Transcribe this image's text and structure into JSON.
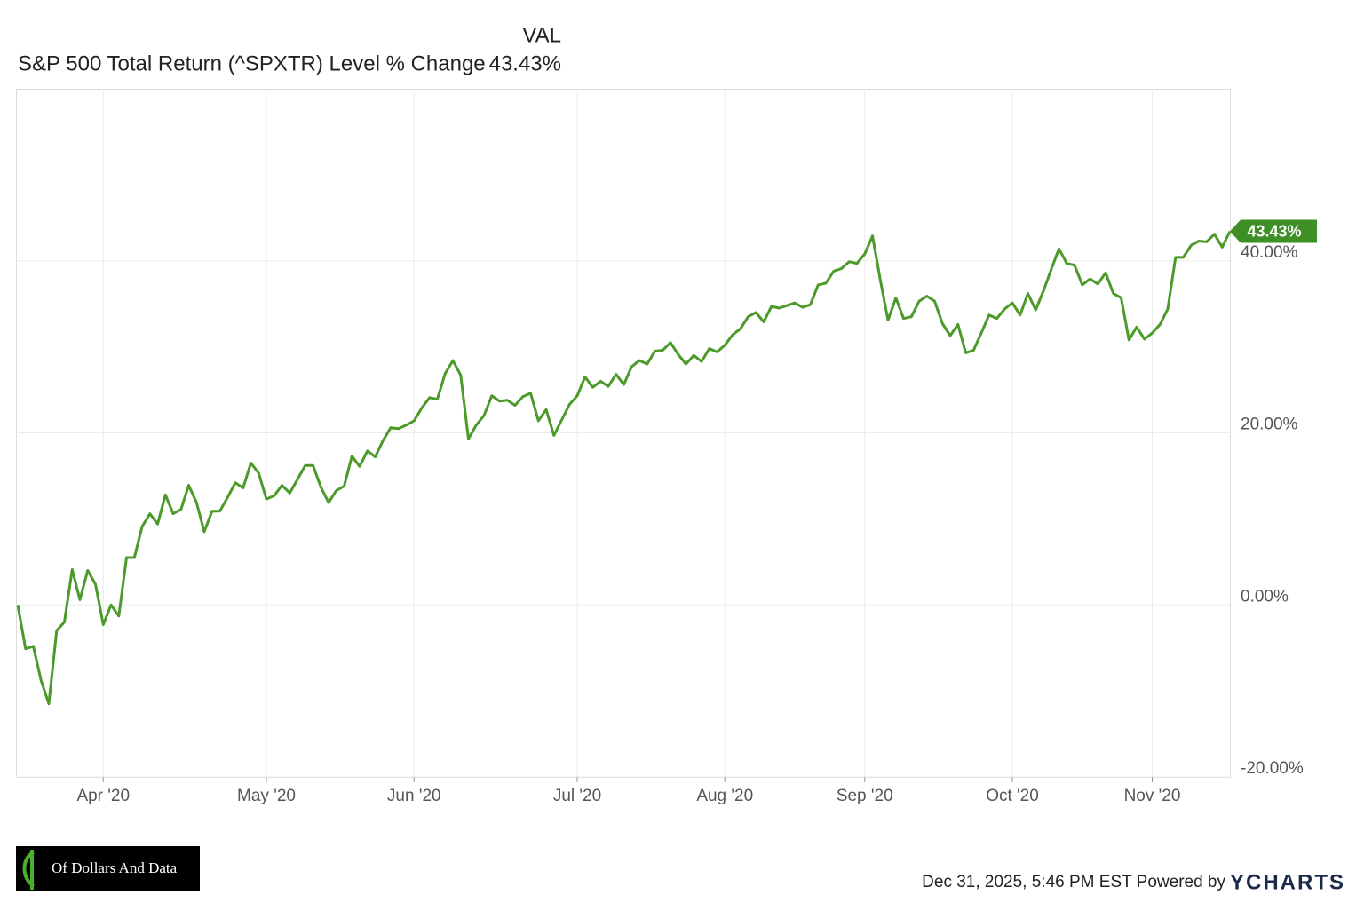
{
  "chart_data": {
    "type": "line",
    "column_header": "VAL",
    "categories": [
      null,
      null,
      null,
      null,
      null,
      null,
      null,
      null,
      null,
      null,
      null,
      "Apr '20",
      null,
      null,
      null,
      null,
      null,
      null,
      null,
      null,
      null,
      null,
      null,
      null,
      null,
      null,
      null,
      null,
      null,
      null,
      null,
      null,
      "May '20",
      null,
      null,
      null,
      null,
      null,
      null,
      null,
      null,
      null,
      null,
      null,
      null,
      null,
      null,
      null,
      null,
      null,
      null,
      "Jun '20",
      null,
      null,
      null,
      null,
      null,
      null,
      null,
      null,
      null,
      null,
      null,
      null,
      null,
      null,
      null,
      null,
      null,
      null,
      null,
      null,
      "Jul '20",
      null,
      null,
      null,
      null,
      null,
      null,
      null,
      null,
      null,
      null,
      null,
      null,
      null,
      null,
      null,
      null,
      null,
      null,
      "Aug '20",
      null,
      null,
      null,
      null,
      null,
      null,
      null,
      null,
      null,
      null,
      null,
      null,
      null,
      null,
      null,
      null,
      null,
      "Sep '20",
      null,
      null,
      null,
      null,
      null,
      null,
      null,
      null,
      null,
      null,
      null,
      null,
      null,
      null,
      null,
      null,
      null,
      null,
      "Oct '20",
      null,
      null,
      null,
      null,
      null,
      null,
      null,
      null,
      null,
      null,
      null,
      null,
      null,
      null,
      null,
      null,
      null,
      "Nov '20",
      null,
      null,
      null,
      null,
      null,
      null,
      null,
      null,
      null,
      null
    ],
    "series": [
      {
        "name": "S&P 500 Total Return (^SPXTR) Level % Change",
        "color": "#4c9a2a",
        "last_label": "43.43%",
        "values": [
          0,
          -5.1,
          -4.8,
          -8.8,
          -11.5,
          -3.0,
          -2.0,
          4.1,
          0.6,
          4.0,
          2.4,
          -2.3,
          0,
          -1.3,
          5.5,
          5.5,
          9.1,
          10.6,
          9.4,
          12.8,
          10.6,
          11.1,
          13.9,
          11.9,
          8.5,
          10.9,
          10.9,
          12.5,
          14.2,
          13.6,
          16.5,
          15.3,
          12.3,
          12.7,
          13.9,
          13.0,
          14.6,
          16.2,
          16.2,
          13.7,
          11.9,
          13.3,
          13.8,
          17.3,
          16.1,
          17.9,
          17.2,
          19.1,
          20.6,
          20.5,
          20.9,
          21.4,
          22.9,
          24.1,
          23.9,
          26.9,
          28.4,
          26.7,
          19.3,
          20.9,
          22.0,
          24.3,
          23.7,
          23.8,
          23.2,
          24.2,
          24.6,
          21.4,
          22.7,
          19.7,
          21.5,
          23.3,
          24.3,
          26.5,
          25.3,
          26.0,
          25.4,
          26.8,
          25.6,
          27.7,
          28.4,
          28.0,
          29.5,
          29.6,
          30.5,
          29.1,
          28.0,
          29.0,
          28.3,
          29.8,
          29.4,
          30.2,
          31.4,
          32.1,
          33.5,
          34.0,
          32.9,
          34.7,
          34.5,
          34.8,
          35.1,
          34.6,
          34.9,
          37.2,
          37.4,
          38.8,
          39.1,
          39.9,
          39.7,
          40.8,
          42.9,
          37.8,
          33.1,
          35.7,
          33.3,
          33.5,
          35.3,
          35.9,
          35.3,
          32.7,
          31.3,
          32.6,
          29.3,
          29.6,
          31.6,
          33.7,
          33.3,
          34.4,
          35.1,
          33.7,
          36.2,
          34.3,
          36.5,
          39.0,
          41.4,
          39.7,
          39.5,
          37.2,
          37.9,
          37.3,
          38.6,
          36.2,
          35.7,
          30.8,
          32.3,
          30.9,
          31.6,
          32.6,
          34.4,
          40.4,
          40.4,
          41.8,
          42.3,
          42.2,
          43.1,
          41.6,
          43.43
        ]
      }
    ],
    "ylim": [
      -20,
      60
    ],
    "yticks": [
      {
        "value": -20,
        "label": "-20.00%"
      },
      {
        "value": 0,
        "label": "0.00%"
      },
      {
        "value": 20,
        "label": "20.00%"
      },
      {
        "value": 40,
        "label": "40.00%"
      }
    ],
    "grid": true,
    "badge_color": "#3d8f26"
  },
  "footer": {
    "timestamp": "Dec 31, 2025, 5:46 PM EST Powered by",
    "brand": "YCHARTS",
    "logo_text": "Of Dollars And Data"
  }
}
